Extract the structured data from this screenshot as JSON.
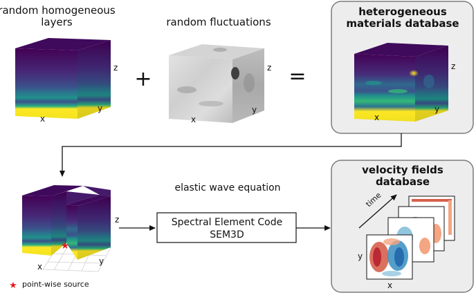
{
  "labels": {
    "homogeneous_line1": "random homogeneous",
    "homogeneous_line2": "layers",
    "fluctuations": "random fluctuations",
    "plus": "+",
    "equals": "=",
    "database_line1": "heterogeneous",
    "database_line2": "materials database",
    "wave_equation": "elastic wave equation",
    "solver_line1": "Spectral Element Code",
    "solver_line2": "SEM3D",
    "velocity_line1": "velocity fields",
    "velocity_line2": "database",
    "time": "time",
    "source_legend": "point-wise source"
  },
  "axes": {
    "x": "x",
    "y": "y",
    "z": "z"
  },
  "colors": {
    "viridis_dark": "#440154",
    "viridis_purple": "#472c7a",
    "viridis_blue": "#3b528b",
    "viridis_teal": "#21918c",
    "viridis_green": "#5ec962",
    "viridis_yellow": "#fde725",
    "panel_bg": "#ededed",
    "panel_border": "#7a7a7a",
    "source_star": "#e41a1c"
  },
  "icons": {
    "source_marker": "red-star-icon"
  }
}
